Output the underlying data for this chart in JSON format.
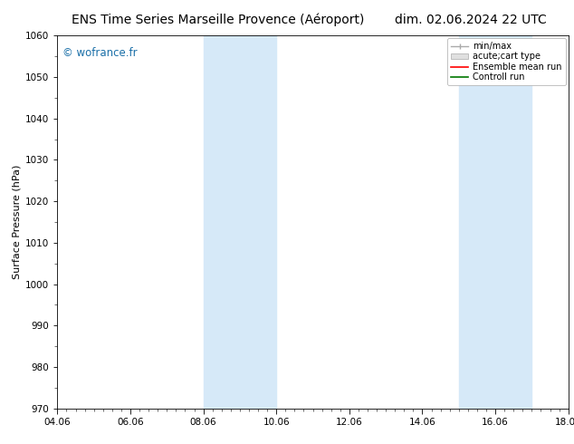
{
  "title_left": "ENS Time Series Marseille Provence (Aéroport)",
  "title_right": "dim. 02.06.2024 22 UTC",
  "ylabel": "Surface Pressure (hPa)",
  "ylim": [
    970,
    1060
  ],
  "yticks": [
    970,
    980,
    990,
    1000,
    1010,
    1020,
    1030,
    1040,
    1050,
    1060
  ],
  "xlim_start": 0,
  "xlim_end": 14,
  "xtick_labels": [
    "04.06",
    "06.06",
    "08.06",
    "10.06",
    "12.06",
    "14.06",
    "16.06",
    "18.06"
  ],
  "xtick_positions": [
    0,
    2,
    4,
    6,
    8,
    10,
    12,
    14
  ],
  "shaded_bands": [
    {
      "xmin": 4.0,
      "xmax": 6.0
    },
    {
      "xmin": 11.0,
      "xmax": 13.0
    }
  ],
  "shade_color": "#d6e9f8",
  "watermark": "© wofrance.fr",
  "watermark_color": "#1a6fa8",
  "legend_entries": [
    "min/max",
    "acute;cart type",
    "Ensemble mean run",
    "Controll run"
  ],
  "legend_colors": [
    "#aaaaaa",
    "#cccccc",
    "#ff0000",
    "#007700"
  ],
  "background_color": "#ffffff",
  "plot_bg_color": "#ffffff",
  "title_fontsize": 10,
  "axis_label_fontsize": 8,
  "tick_fontsize": 7.5
}
